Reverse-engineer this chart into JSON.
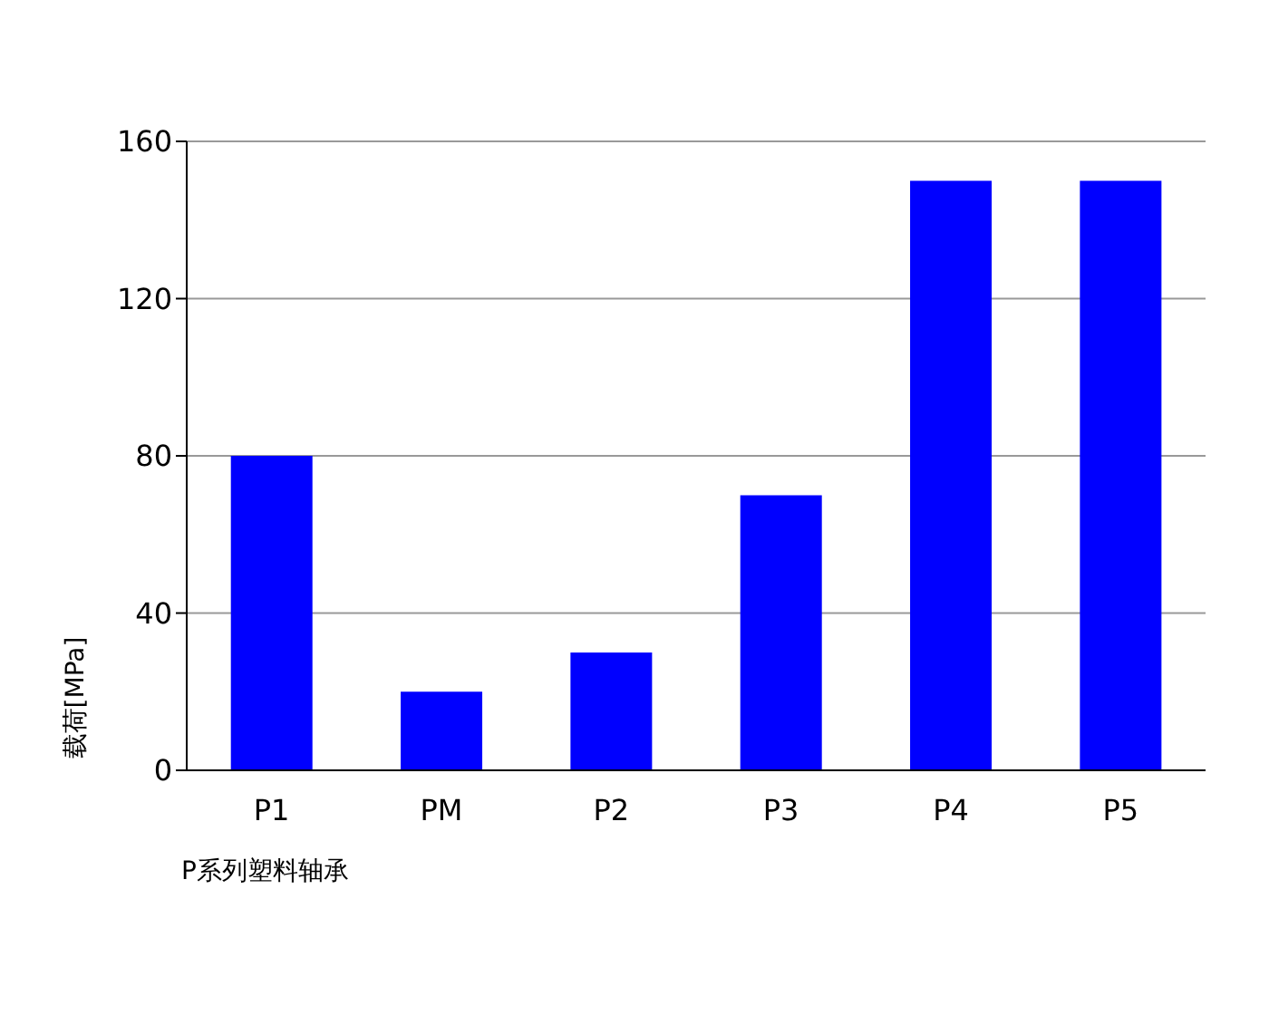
{
  "chart_data": {
    "type": "bar",
    "xlabel": "P系列塑料轴承",
    "ylabel": "载荷[MPa]",
    "categories": [
      "P1",
      "PM",
      "P2",
      "P3",
      "P4",
      "P5"
    ],
    "values": [
      80,
      20,
      30,
      70,
      150,
      150
    ],
    "color": "#0000ff",
    "ylim": [
      0,
      160
    ],
    "yticks": [
      0,
      40,
      80,
      120,
      160
    ],
    "grid": "y"
  }
}
